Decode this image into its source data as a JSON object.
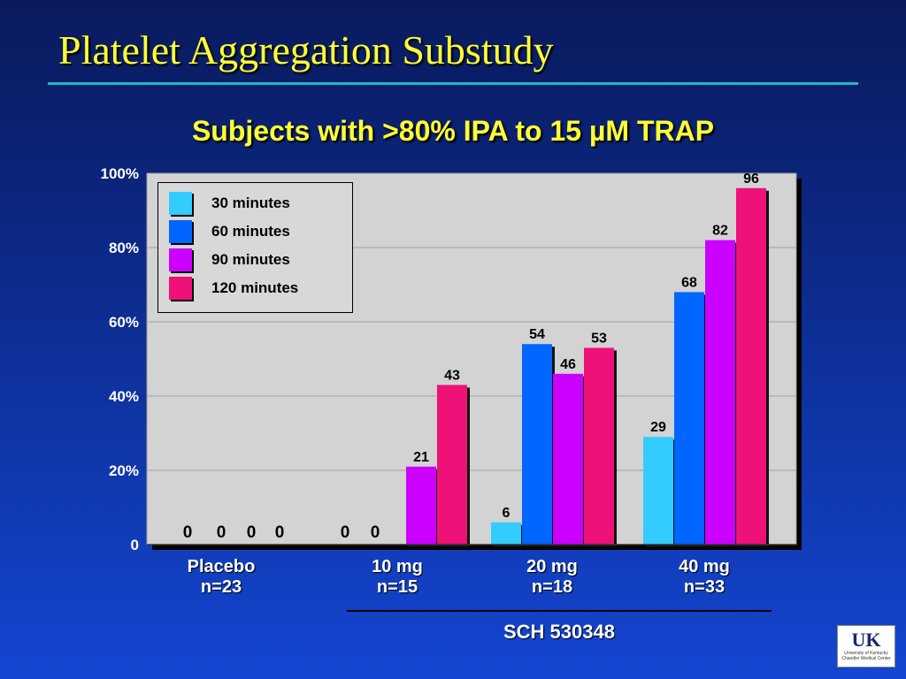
{
  "slide": {
    "title": "Platelet Aggregation Substudy",
    "chart_title": "Subjects with >80% IPA to 15 µM TRAP",
    "drug_label": "SCH 530348",
    "logo_text": "UK",
    "logo_subtext": "University of Kentucky Chandler Medical Center"
  },
  "chart_data": {
    "type": "bar",
    "title": "Subjects with >80% IPA to 15 µM TRAP",
    "xlabel": "",
    "ylabel": "",
    "ylim": [
      0,
      100
    ],
    "yticks": [
      "0",
      "20%",
      "40%",
      "60%",
      "80%",
      "100%"
    ],
    "grid": true,
    "legend_position": "top-left",
    "categories": [
      "Placebo n=23",
      "10 mg n=15",
      "20 mg n=18",
      "40 mg n=33"
    ],
    "category_lines": [
      [
        "Placebo",
        "n=23"
      ],
      [
        "10 mg",
        "n=15"
      ],
      [
        "20 mg",
        "n=18"
      ],
      [
        "40 mg",
        "n=33"
      ]
    ],
    "series": [
      {
        "name": "30 minutes",
        "color": "#33ccff",
        "values": [
          0,
          0,
          6,
          29
        ]
      },
      {
        "name": "60 minutes",
        "color": "#0066ff",
        "values": [
          0,
          0,
          54,
          68
        ]
      },
      {
        "name": "90 minutes",
        "color": "#cc00ff",
        "values": [
          0,
          21,
          46,
          82
        ]
      },
      {
        "name": "120 minutes",
        "color": "#ee1177",
        "values": [
          0,
          43,
          53,
          96
        ]
      }
    ]
  }
}
